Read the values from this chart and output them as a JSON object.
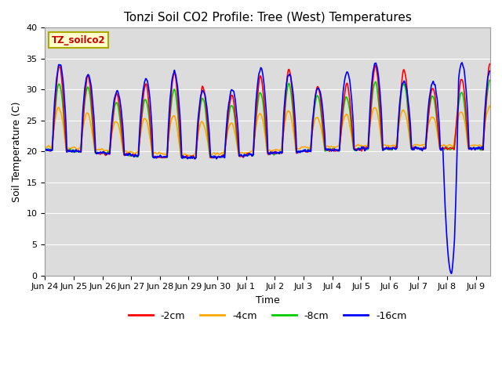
{
  "title": "Tonzi Soil CO2 Profile: Tree (West) Temperatures",
  "xlabel": "Time",
  "ylabel": "Soil Temperature (C)",
  "ylim": [
    0,
    40
  ],
  "background_color": "#dcdcdc",
  "figure_color": "#ffffff",
  "legend_label": "TZ_soilco2",
  "series": [
    {
      "label": "-2cm",
      "color": "#ff0000"
    },
    {
      "label": "-4cm",
      "color": "#ffa500"
    },
    {
      "label": "-8cm",
      "color": "#00cc00"
    },
    {
      "label": "-16cm",
      "color": "#0000ff"
    }
  ],
  "x_tick_labels": [
    "Jun 24",
    "Jun 25",
    "Jun 26",
    "Jun 27",
    "Jun 28",
    "Jun 29",
    "Jun 30",
    "Jul 1",
    "Jul 2",
    "Jul 3",
    "Jul 4",
    "Jul 5",
    "Jul 6",
    "Jul 7",
    "Jul 8",
    "Jul 9"
  ],
  "grid_color": "#ffffff",
  "linewidth": 1.2,
  "title_fontsize": 11,
  "axis_fontsize": 9,
  "tick_fontsize": 8
}
